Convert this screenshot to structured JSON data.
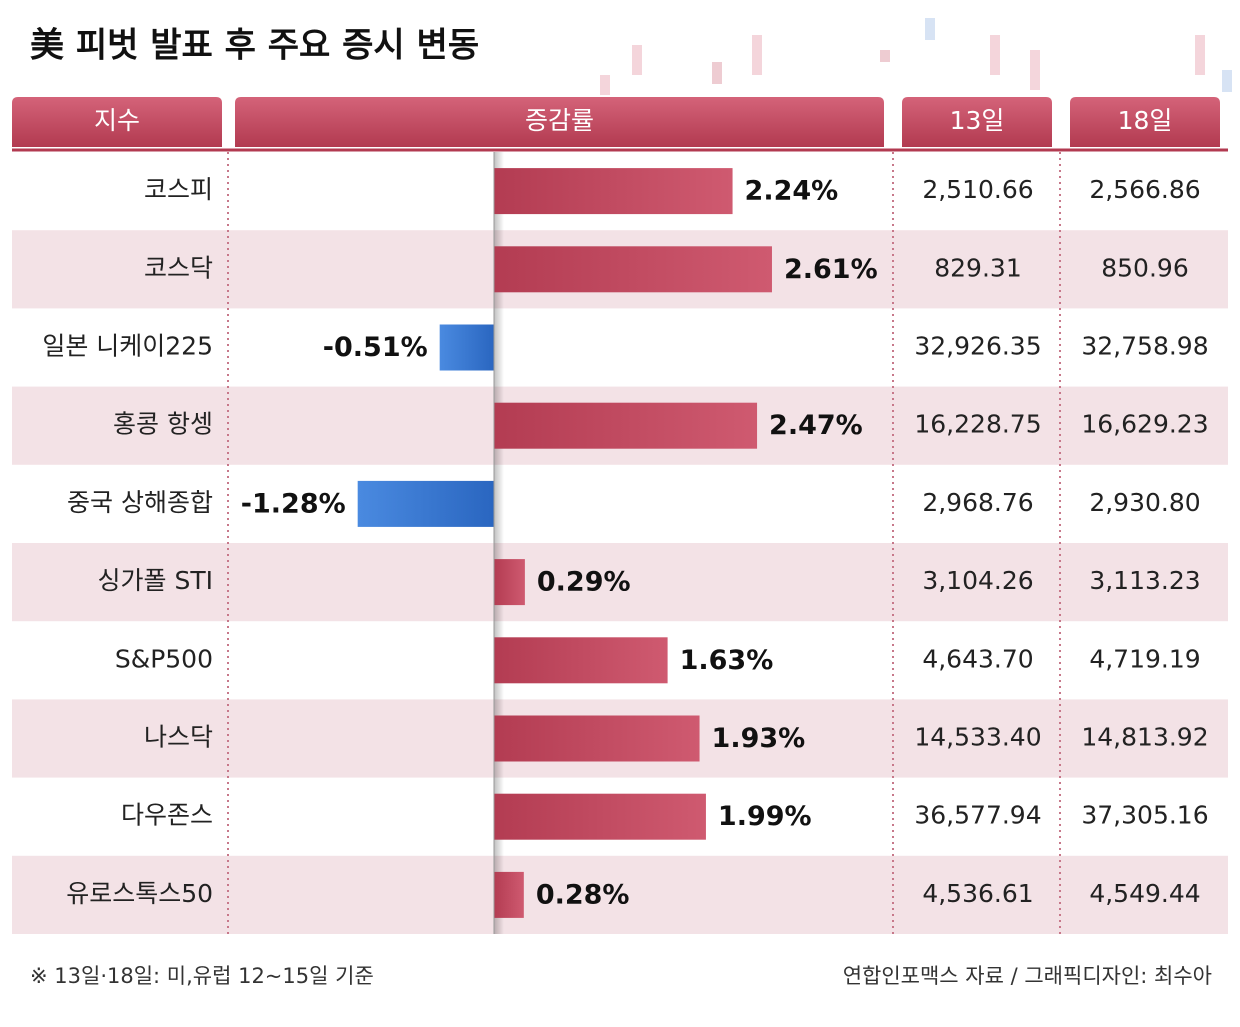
{
  "chart_data": {
    "type": "hbar",
    "title": "美 피벗 발표 후 주요 증시 변동",
    "headers": [
      "지수",
      "증감률",
      "13일",
      "18일"
    ],
    "categories": [
      "코스피",
      "코스닥",
      "일본 니케이225",
      "홍콩 항셍",
      "중국 상해종합",
      "싱가폴 STI",
      "S&P500",
      "나스닥",
      "다우존스",
      "유로스톡스50"
    ],
    "values": [
      2.24,
      2.61,
      -0.51,
      2.47,
      -1.28,
      0.29,
      1.63,
      1.93,
      1.99,
      0.28
    ],
    "value_labels": [
      "2.24%",
      "2.61%",
      "-0.51%",
      "2.47%",
      "-1.28%",
      "0.29%",
      "1.63%",
      "1.93%",
      "1.99%",
      "0.28%"
    ],
    "color": "#c44d63",
    "negative_color": "#3474d0",
    "columns": [
      [
        "2,510.66",
        "829.31",
        "32,926.35",
        "16,228.75",
        "2,968.76",
        "3,104.26",
        "4,643.70",
        "14,533.40",
        "36,577.94",
        "4,536.61"
      ],
      [
        "2,566.86",
        "850.96",
        "32,758.98",
        "16,629.23",
        "2,930.80",
        "3,113.23",
        "4,719.19",
        "14,813.92",
        "37,305.16",
        "4,549.44"
      ]
    ],
    "note": "※ 13일·18일: 미,유럽 12~15일 기준",
    "source": "연합인포맥스 자료 / 그래픽디자인: 최수아"
  }
}
